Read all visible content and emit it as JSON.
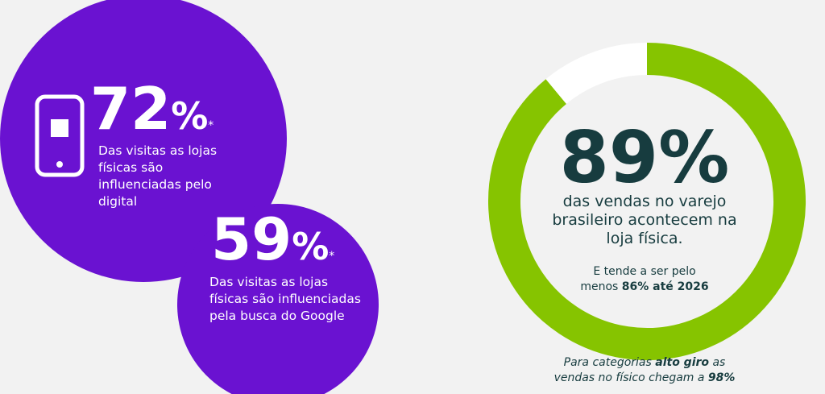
{
  "stats": [
    {
      "number": "72",
      "unit": "%",
      "note": "*",
      "lines": [
        "Das visitas as lojas",
        "físicas são",
        "influenciadas pelo",
        "digital"
      ]
    },
    {
      "number": "59",
      "unit": "%",
      "note": "*",
      "lines": [
        "Das visitas as lojas",
        "físicas são influenciadas",
        "pela busca do Google"
      ]
    }
  ],
  "donut": {
    "value": 89,
    "label": "89%",
    "max": 100,
    "lines": [
      "das vendas no varejo",
      "brasileiro acontecem na",
      "loja física."
    ],
    "forecast": [
      "E tende a ser pelo",
      "menos ",
      "86% até 2026"
    ]
  },
  "footnote": [
    "Para categorias ",
    "alto giro",
    " as",
    "vendas no físico chegam a ",
    "98%"
  ]
}
